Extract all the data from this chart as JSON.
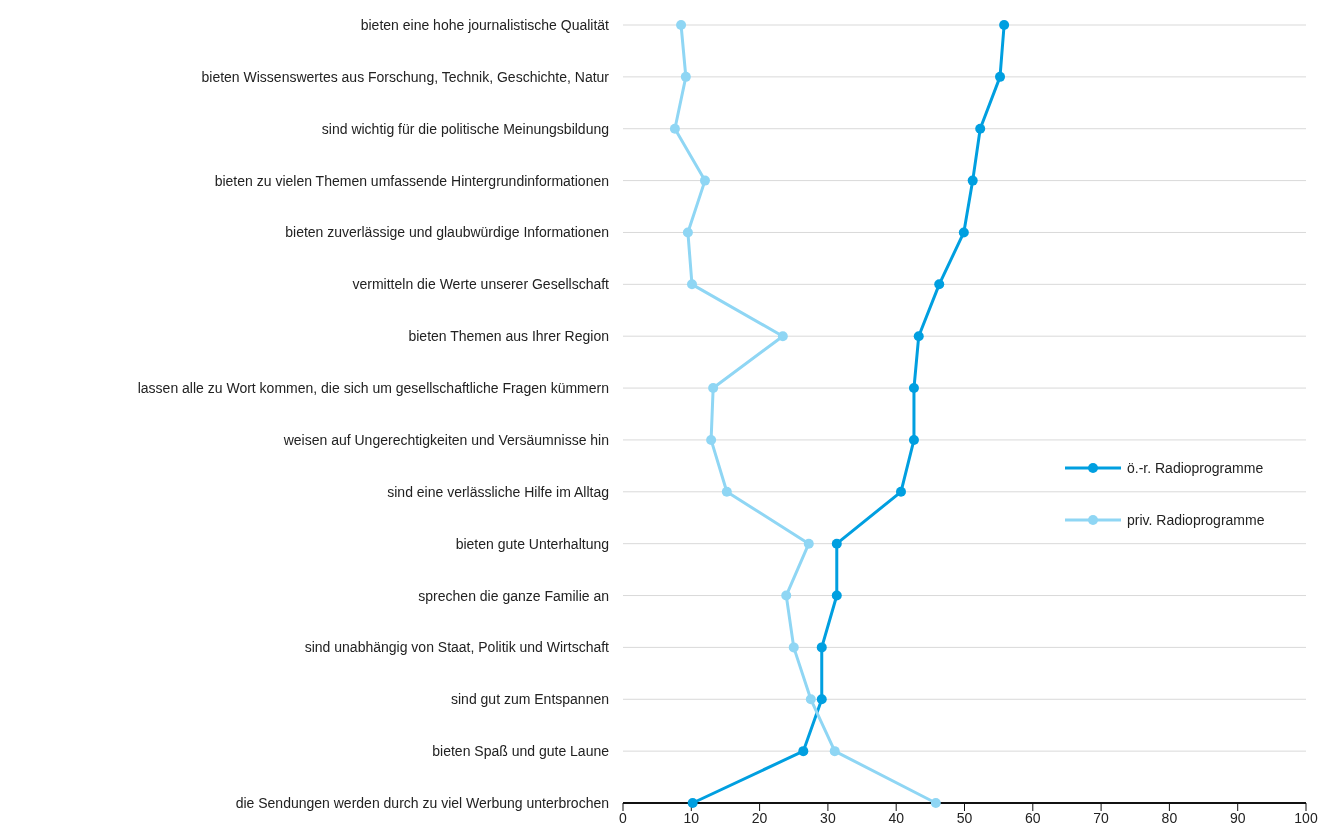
{
  "chart_data": {
    "type": "line",
    "orientation": "horizontal",
    "categories": [
      "bieten eine hohe journalistische Qualität",
      "bieten Wissenswertes aus Forschung, Technik, Geschichte, Natur",
      "sind wichtig für die politische Meinungsbildung",
      "bieten zu vielen Themen umfassende Hintergrundinformationen",
      "bieten zuverlässige und glaubwürdige Informationen",
      "vermitteln die Werte unserer Gesellschaft",
      "bieten Themen aus Ihrer Region",
      "lassen alle zu Wort kommen, die sich um gesellschaftliche Fragen kümmern",
      "weisen auf Ungerechtigkeiten und Versäumnisse hin",
      "sind eine verlässliche Hilfe im Alltag",
      "bieten gute Unterhaltung",
      "sprechen die ganze Familie an",
      "sind unabhängig von Staat, Politik und Wirtschaft",
      "sind gut zum Entspannen",
      "bieten Spaß und gute Laune",
      "die Sendungen werden durch zu viel Werbung unterbrochen"
    ],
    "series": [
      {
        "name": "ö.-r. Radioprogramme",
        "color": "#009fe0",
        "values": [
          55.8,
          55.2,
          52.3,
          51.2,
          49.9,
          46.3,
          43.3,
          42.6,
          42.6,
          40.7,
          31.3,
          31.3,
          29.1,
          29.1,
          26.4,
          10.2
        ]
      },
      {
        "name": "priv. Radioprogramme",
        "color": "#8fd6f4",
        "values": [
          8.5,
          9.2,
          7.6,
          12.0,
          9.5,
          10.1,
          23.4,
          13.2,
          12.9,
          15.2,
          27.2,
          23.9,
          25.0,
          27.5,
          31.0,
          45.8
        ]
      }
    ],
    "xlim": [
      0,
      100
    ],
    "xticks": [
      0,
      10,
      20,
      30,
      40,
      50,
      60,
      70,
      80,
      90,
      100
    ],
    "grid": "y",
    "legend": "right",
    "marker": "circle"
  }
}
